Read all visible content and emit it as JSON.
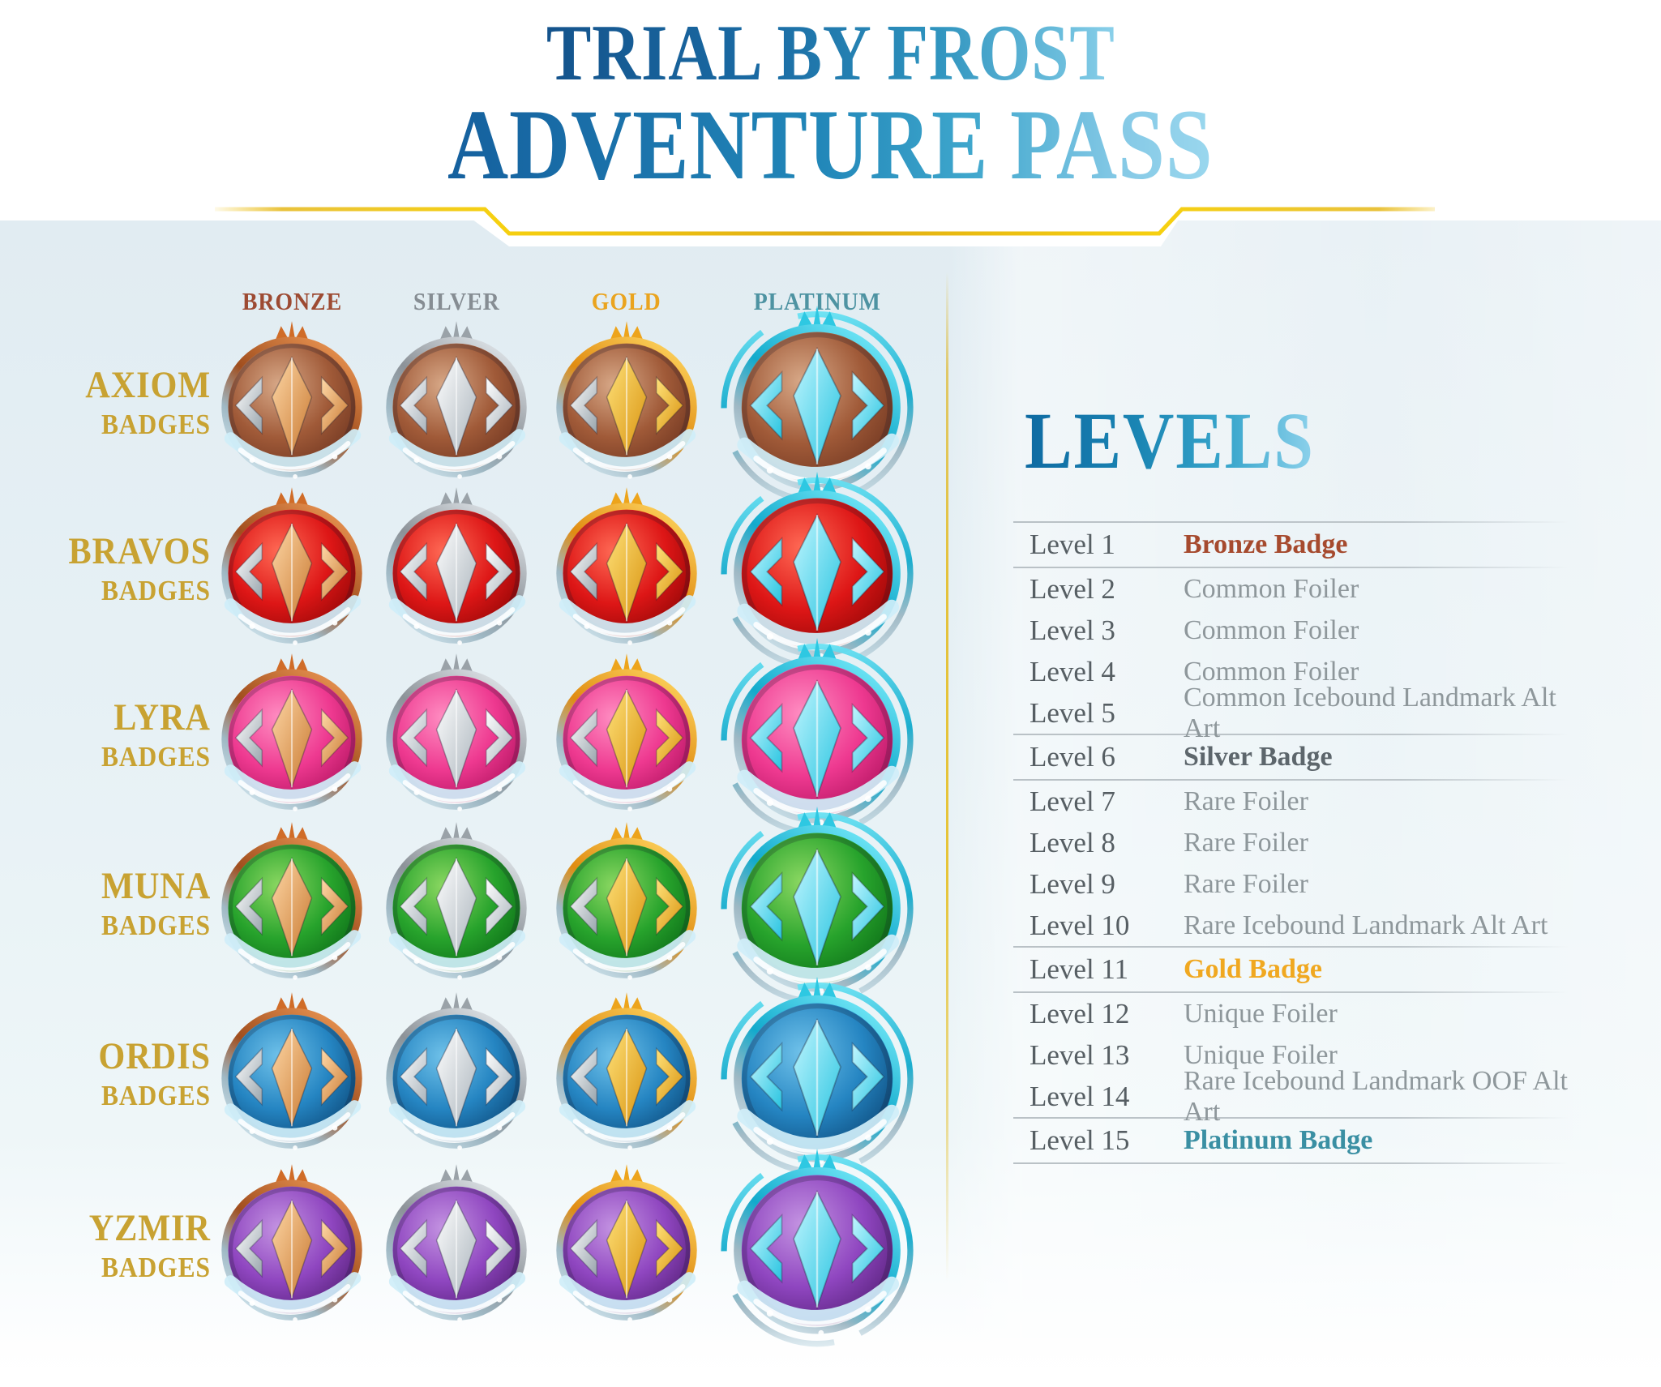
{
  "header": {
    "title_line1": "TRIAL BY FROST",
    "title_line2": "ADVENTURE PASS"
  },
  "badge_grid": {
    "tier_headers": [
      {
        "id": "bronze",
        "label": "BRONZE",
        "color": "#9d4b33"
      },
      {
        "id": "silver",
        "label": "SILVER",
        "color": "#868d93"
      },
      {
        "id": "gold",
        "label": "GOLD",
        "color": "#eaa41f"
      },
      {
        "id": "platinum",
        "label": "PLATINUM",
        "color": "#4e93a2"
      }
    ],
    "tier_styles": {
      "bronze": {
        "ring_light": "#f09a56",
        "ring_dark": "#a04e1e",
        "emblem_light": "#ffd9a8",
        "emblem_dark": "#c87830",
        "ornament": "#d06c28"
      },
      "silver": {
        "ring_light": "#e8edf1",
        "ring_dark": "#8c9298",
        "emblem_light": "#ffffff",
        "emblem_dark": "#aab4bc",
        "ornament": "#9aa2a8"
      },
      "gold": {
        "ring_light": "#ffd863",
        "ring_dark": "#e08c12",
        "emblem_light": "#ffe27a",
        "emblem_dark": "#d8920e",
        "ornament": "#eda41c"
      },
      "platinum": {
        "ring_light": "#7ceefc",
        "ring_dark": "#12aacc",
        "emblem_light": "#c2f6ff",
        "emblem_dark": "#28c4e0",
        "ornament": "#2ec8e2"
      }
    },
    "factions": [
      {
        "id": "axiom",
        "name": "AXIOM",
        "subtitle": "BADGES",
        "disc_hi": "#d8a988",
        "disc_mid": "#a05a38",
        "disc_dark": "#6e3520"
      },
      {
        "id": "bravos",
        "name": "BRAVOS",
        "subtitle": "BADGES",
        "disc_hi": "#ff6a55",
        "disc_mid": "#dd1616",
        "disc_dark": "#8e0606"
      },
      {
        "id": "lyra",
        "name": "LYRA",
        "subtitle": "BADGES",
        "disc_hi": "#ff8ec2",
        "disc_mid": "#ee3990",
        "disc_dark": "#b0125e"
      },
      {
        "id": "muna",
        "name": "MUNA",
        "subtitle": "BADGES",
        "disc_hi": "#8cd862",
        "disc_mid": "#27a32c",
        "disc_dark": "#0b6a16"
      },
      {
        "id": "ordis",
        "name": "ORDIS",
        "subtitle": "BADGES",
        "disc_hi": "#70c2ea",
        "disc_mid": "#2585c2",
        "disc_dark": "#0c4878"
      },
      {
        "id": "yzmir",
        "name": "YZMIR",
        "subtitle": "BADGES",
        "disc_hi": "#c494e2",
        "disc_mid": "#8f46c0",
        "disc_dark": "#562078"
      }
    ],
    "frost_color": "#cfeef8",
    "ice_ring_color": "#d8ecf4"
  },
  "levels": {
    "heading": "LEVELS",
    "reward_colors": {
      "normal": "#8e979b",
      "bronze": "#a64a2e",
      "silver": "#5d666c",
      "gold": "#f0a820",
      "platinum": "#3a8fa3"
    },
    "rows": [
      {
        "level": "Level 1",
        "reward": "Bronze Badge",
        "style": "bronze"
      },
      {
        "level": "Level 2",
        "reward": "Common Foiler",
        "style": "normal"
      },
      {
        "level": "Level 3",
        "reward": "Common Foiler",
        "style": "normal"
      },
      {
        "level": "Level 4",
        "reward": "Common Foiler",
        "style": "normal"
      },
      {
        "level": "Level 5",
        "reward": "Common Icebound Landmark Alt Art",
        "style": "normal"
      },
      {
        "level": "Level 6",
        "reward": "Silver Badge",
        "style": "silver"
      },
      {
        "level": "Level 7",
        "reward": "Rare Foiler",
        "style": "normal"
      },
      {
        "level": "Level 8",
        "reward": "Rare Foiler",
        "style": "normal"
      },
      {
        "level": "Level 9",
        "reward": "Rare Foiler",
        "style": "normal"
      },
      {
        "level": "Level 10",
        "reward": "Rare Icebound Landmark Alt Art",
        "style": "normal"
      },
      {
        "level": "Level 11",
        "reward": "Gold Badge",
        "style": "gold"
      },
      {
        "level": "Level 12",
        "reward": "Unique Foiler",
        "style": "normal"
      },
      {
        "level": "Level 13",
        "reward": "Unique Foiler",
        "style": "normal"
      },
      {
        "level": "Level 14",
        "reward": "Rare Icebound Landmark OOF Alt Art",
        "style": "normal"
      },
      {
        "level": "Level 15",
        "reward": "Platinum Badge",
        "style": "platinum"
      }
    ]
  },
  "divider_color": "#e9bc1e"
}
